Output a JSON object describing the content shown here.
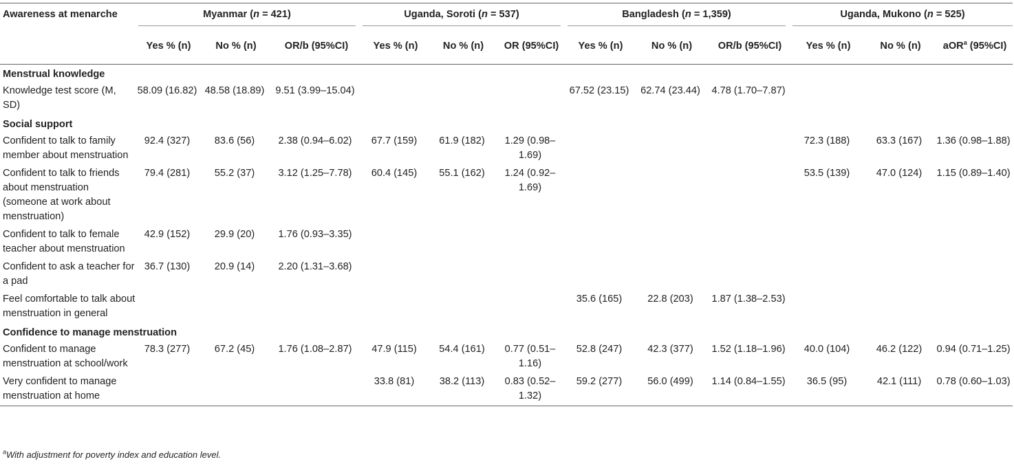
{
  "header": {
    "corner": "Awareness at menarche",
    "groups": [
      {
        "prefix": "Myanmar (",
        "n": "n",
        "suffix": " = 421)"
      },
      {
        "prefix": "Uganda, Soroti (",
        "n": "n",
        "suffix": " = 537)"
      },
      {
        "prefix": "Bangladesh (",
        "n": "n",
        "suffix": " = 1,359)"
      },
      {
        "prefix": "Uganda, Mukono (",
        "n": "n",
        "suffix": " = 525)"
      }
    ],
    "subheaders": [
      "Yes % (n)",
      "No % (n)",
      "OR/b (95%CI)",
      "Yes % (n)",
      "No % (n)",
      "OR (95%CI)",
      "Yes % (n)",
      "No % (n)",
      "OR/b (95%CI)",
      "Yes % (n)",
      "No % (n)",
      "aOR",
      "a",
      " (95%CI)"
    ]
  },
  "sections": [
    {
      "title": "Menstrual knowledge",
      "rows": [
        {
          "label": "Knowledge test score (M, SD)",
          "cells": [
            "58.09 (16.82)",
            "48.58 (18.89)",
            "9.51 (3.99–15.04)",
            "",
            "",
            "",
            "67.52 (23.15)",
            "62.74 (23.44)",
            "4.78 (1.70–7.87)",
            "",
            "",
            ""
          ]
        }
      ]
    },
    {
      "title": "Social support",
      "rows": [
        {
          "label": "Confident to talk to family member about menstruation",
          "cells": [
            "92.4 (327)",
            "83.6 (56)",
            "2.38 (0.94–6.02)",
            "67.7 (159)",
            "61.9 (182)",
            "1.29 (0.98–1.69)",
            "",
            "",
            "",
            "72.3 (188)",
            "63.3 (167)",
            "1.36 (0.98–1.88)"
          ]
        },
        {
          "label": "Confident to talk to friends about menstruation (someone at work about menstruation)",
          "cells": [
            "79.4 (281)",
            "55.2 (37)",
            "3.12 (1.25–7.78)",
            "60.4 (145)",
            "55.1 (162)",
            "1.24 (0.92–1.69)",
            "",
            "",
            "",
            "53.5 (139)",
            "47.0 (124)",
            "1.15 (0.89–1.40)"
          ]
        },
        {
          "label": "Confident to talk to female teacher about menstruation",
          "cells": [
            "42.9 (152)",
            "29.9 (20)",
            "1.76 (0.93–3.35)",
            "",
            "",
            "",
            "",
            "",
            "",
            "",
            "",
            ""
          ]
        },
        {
          "label": "Confident to ask a teacher for a pad",
          "cells": [
            "36.7 (130)",
            "20.9 (14)",
            "2.20 (1.31–3.68)",
            "",
            "",
            "",
            "",
            "",
            "",
            "",
            "",
            ""
          ]
        },
        {
          "label": "Feel comfortable to talk about menstruation in general",
          "cells": [
            "",
            "",
            "",
            "",
            "",
            "",
            "35.6 (165)",
            "22.8 (203)",
            "1.87 (1.38–2.53)",
            "",
            "",
            ""
          ]
        }
      ]
    },
    {
      "title": "Confidence to manage menstruation",
      "rows": [
        {
          "label": "Confident to manage menstruation at school/work",
          "cells": [
            "78.3 (277)",
            "67.2 (45)",
            "1.76 (1.08–2.87)",
            "47.9 (115)",
            "54.4 (161)",
            "0.77 (0.51–1.16)",
            "52.8 (247)",
            "42.3 (377)",
            "1.52 (1.18–1.96)",
            "40.0 (104)",
            "46.2 (122)",
            "0.94 (0.71–1.25)"
          ]
        },
        {
          "label": "Very confident to manage menstruation at home",
          "cells": [
            "",
            "",
            "",
            "33.8 (81)",
            "38.2 (113)",
            "0.83 (0.52–1.32)",
            "59.2 (277)",
            "56.0 (499)",
            "1.14 (0.84–1.55)",
            "36.5 (95)",
            "42.1 (111)",
            "0.78 (0.60–1.03)"
          ]
        }
      ]
    }
  ],
  "footnote": {
    "sup": "a",
    "text": "With adjustment for poverty index and education level."
  }
}
